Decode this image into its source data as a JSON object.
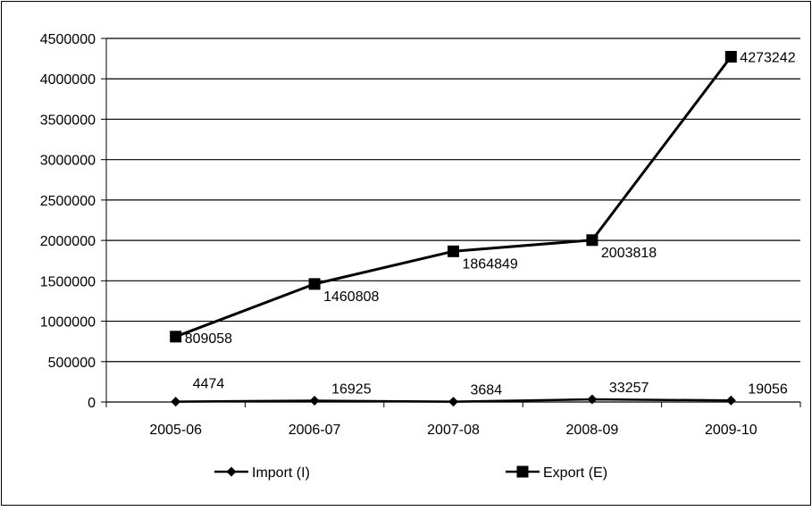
{
  "chart_data": {
    "type": "line",
    "title": "",
    "xlabel": "",
    "ylabel": "",
    "categories": [
      "2005-06",
      "2006-07",
      "2007-08",
      "2008-09",
      "2009-10"
    ],
    "ylim": [
      0,
      4500000
    ],
    "yticks": [
      "0",
      "500000",
      "1000000",
      "1500000",
      "2000000",
      "2500000",
      "3000000",
      "3500000",
      "4000000",
      "4500000"
    ],
    "grid": "horizontal",
    "legend_position": "bottom",
    "series": [
      {
        "name": "Import (I)",
        "marker": "diamond",
        "color": "#000000",
        "values": [
          4474,
          16925,
          3684,
          33257,
          19056
        ],
        "labels": [
          "4474",
          "16925",
          "3684",
          "33257",
          "19056"
        ]
      },
      {
        "name": "Export (E)",
        "marker": "square",
        "color": "#000000",
        "values": [
          809058,
          1460808,
          1864849,
          2003818,
          4273242
        ],
        "labels": [
          "809058",
          "1460808",
          "1864849",
          "2003818",
          "4273242"
        ]
      }
    ]
  }
}
